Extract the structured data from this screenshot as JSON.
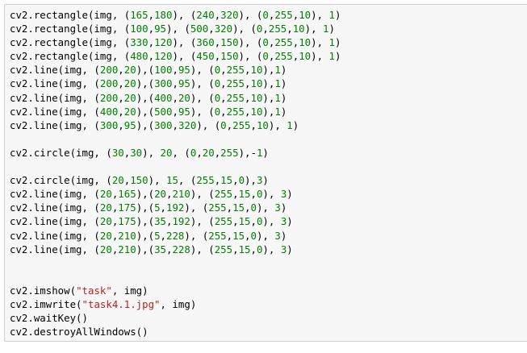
{
  "cell": {
    "lines": [
      "cv2.rectangle(img, (165,180), (240,320), (0,255,10), 1)",
      "cv2.rectangle(img, (100,95), (500,320), (0,255,10), 1)",
      "cv2.rectangle(img, (330,120), (360,150), (0,255,10), 1)",
      "cv2.rectangle(img, (480,120), (450,150), (0,255,10), 1)",
      "cv2.line(img, (200,20),(100,95), (0,255,10),1)",
      "cv2.line(img, (200,20),(300,95), (0,255,10),1)",
      "cv2.line(img, (200,20),(400,20), (0,255,10),1)",
      "cv2.line(img, (400,20),(500,95), (0,255,10),1)",
      "cv2.line(img, (300,95),(300,320), (0,255,10), 1)",
      "",
      "cv2.circle(img, (30,30), 20, (0,20,255),-1)",
      "",
      "cv2.circle(img, (20,150), 15, (255,15,0),3)",
      "cv2.line(img, (20,165),(20,210), (255,15,0), 3)",
      "cv2.line(img, (20,175),(5,192), (255,15,0), 3)",
      "cv2.line(img, (20,175),(35,192), (255,15,0), 3)",
      "cv2.line(img, (20,210),(5,228), (255,15,0), 3)",
      "cv2.line(img, (20,210),(35,228), (255,15,0), 3)",
      "",
      "",
      "cv2.imshow(\"task\", img)",
      "cv2.imwrite(\"task4.1.jpg\", img)",
      "cv2.waitKey()",
      "cv2.destroyAllWindows()"
    ],
    "colors": {
      "number": "#008000",
      "string": "#ba2121",
      "text": "#000000"
    }
  }
}
